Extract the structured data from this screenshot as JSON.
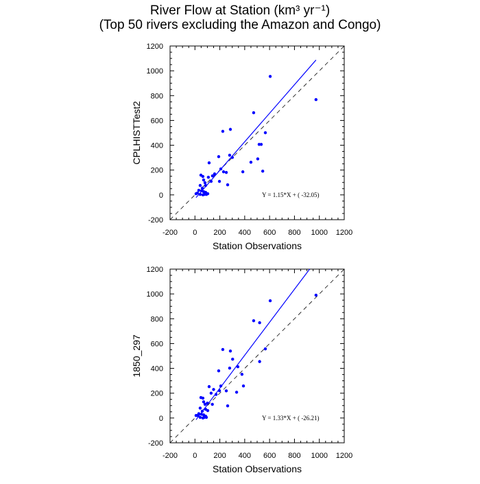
{
  "title": "River Flow at Station (km³ yr⁻¹)",
  "subtitle": "(Top 50 rivers excluding the Amazon and Congo)",
  "chart_data": [
    {
      "type": "scatter",
      "xlabel": "Station Observations",
      "ylabel": "CPLHISTTest2",
      "xlim": [
        -200,
        1200
      ],
      "ylim": [
        -200,
        1200
      ],
      "xticks": [
        -200,
        0,
        200,
        400,
        600,
        800,
        1000,
        1200
      ],
      "yticks": [
        -200,
        0,
        200,
        400,
        600,
        800,
        1000,
        1200
      ],
      "color": "#0000ff",
      "x": [
        605,
        973,
        472,
        285,
        224,
        566,
        516,
        533,
        191,
        279,
        301,
        505,
        450,
        114,
        208,
        230,
        252,
        385,
        545,
        158,
        141,
        108,
        48,
        64,
        70,
        81,
        130,
        197,
        263,
        42,
        86,
        59,
        31,
        53,
        70,
        20,
        86,
        103,
        9,
        42,
        75,
        64,
        92
      ],
      "values": [
        955,
        768,
        662,
        528,
        512,
        501,
        407,
        407,
        308,
        320,
        302,
        290,
        263,
        258,
        209,
        186,
        181,
        186,
        191,
        169,
        153,
        142,
        159,
        148,
        120,
        98,
        109,
        109,
        81,
        76,
        76,
        54,
        37,
        32,
        26,
        15,
        20,
        9,
        9,
        4,
        4,
        0,
        4
      ],
      "fit": {
        "slope": 1.15,
        "intercept": -32.05,
        "label": "Y =  1.15*X + (  -32.05)"
      }
    },
    {
      "type": "scatter",
      "xlabel": "Station Observations",
      "ylabel": "1850_297",
      "xlim": [
        -200,
        1200
      ],
      "ylim": [
        -200,
        1200
      ],
      "xticks": [
        -200,
        0,
        200,
        400,
        600,
        800,
        1000,
        1200
      ],
      "yticks": [
        -200,
        0,
        200,
        400,
        600,
        800,
        1000,
        1200
      ],
      "color": "#0000ff",
      "x": [
        605,
        973,
        472,
        520,
        566,
        285,
        224,
        303,
        279,
        345,
        378,
        390,
        335,
        191,
        114,
        208,
        252,
        263,
        150,
        130,
        170,
        48,
        64,
        70,
        81,
        100,
        197,
        140,
        42,
        86,
        59,
        31,
        53,
        70,
        20,
        86,
        103,
        9,
        42,
        75,
        64,
        92,
        520
      ],
      "values": [
        945,
        990,
        784,
        768,
        557,
        540,
        552,
        474,
        402,
        413,
        352,
        258,
        208,
        380,
        253,
        258,
        219,
        98,
        230,
        200,
        190,
        165,
        160,
        130,
        110,
        120,
        220,
        110,
        80,
        70,
        55,
        35,
        30,
        25,
        20,
        15,
        60,
        20,
        5,
        5,
        0,
        5,
        455
      ],
      "fit": {
        "slope": 1.33,
        "intercept": -26.21,
        "label": "Y =  1.33*X + (  -26.21)"
      }
    }
  ]
}
